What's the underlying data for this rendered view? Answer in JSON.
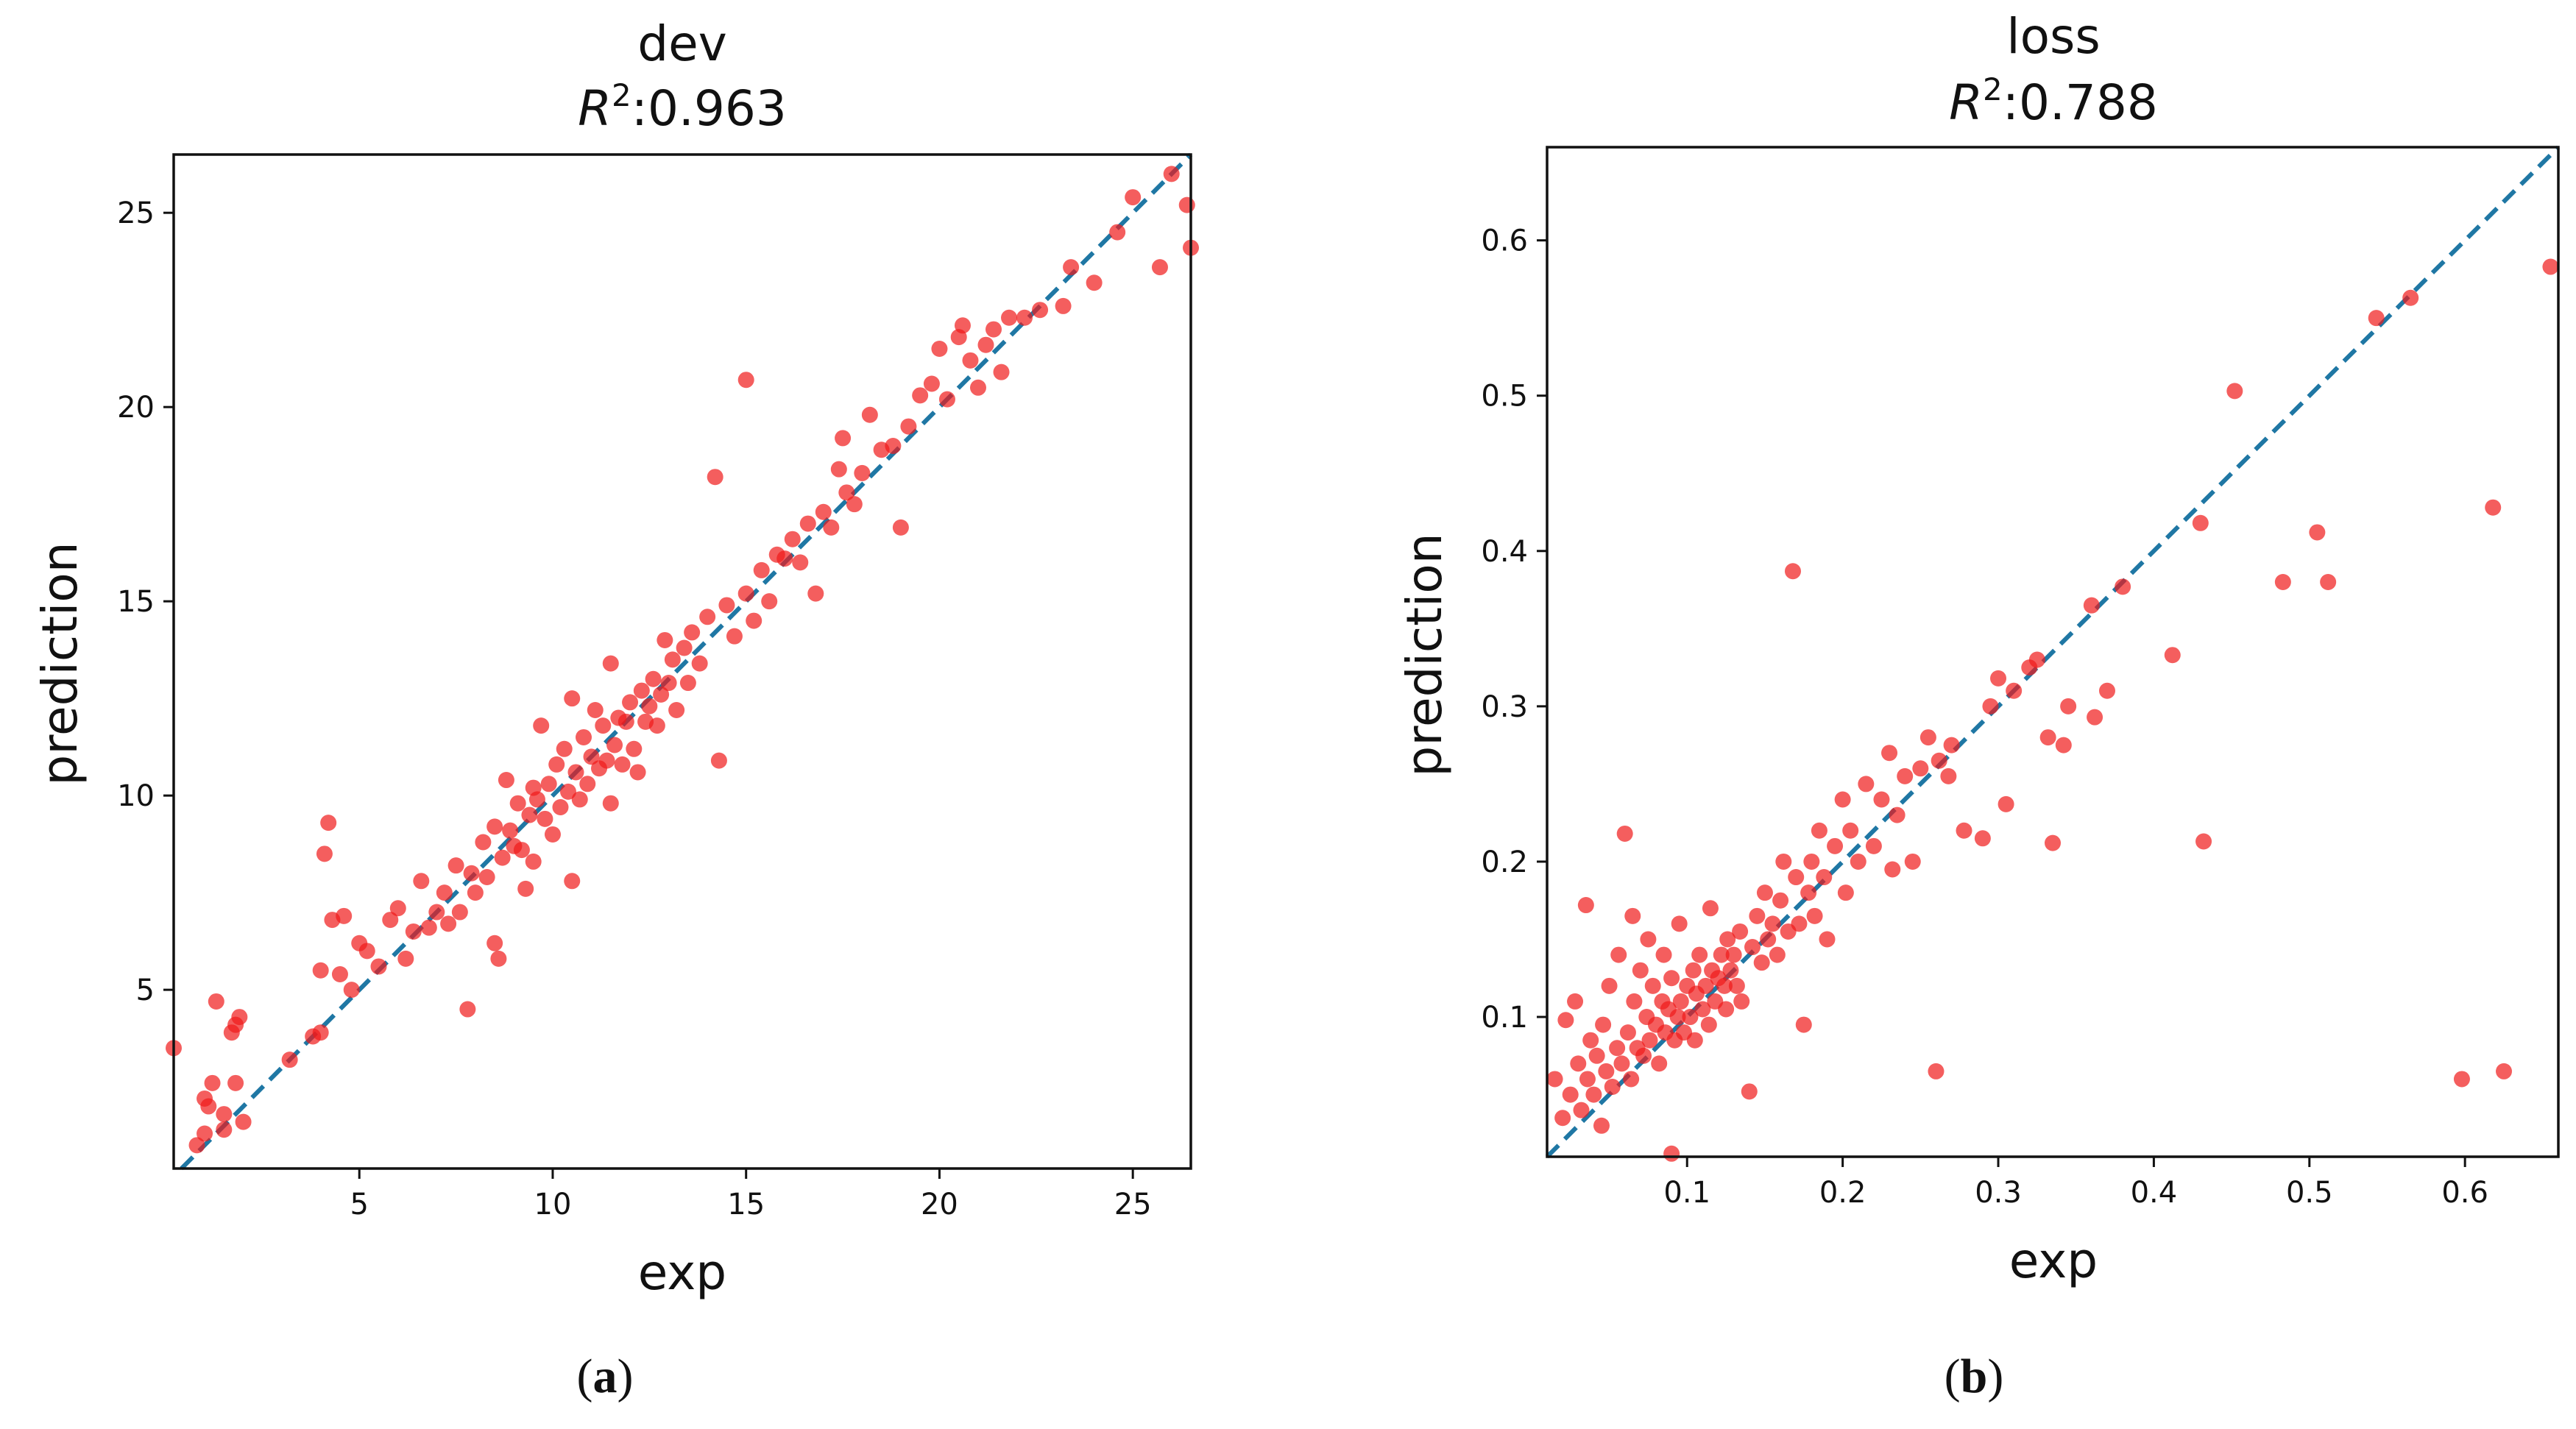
{
  "chart_data": [
    {
      "type": "scatter",
      "panel_caption": "a",
      "title": "dev",
      "r2_label": "R",
      "r2_sup": "2",
      "r2_value": ":0.963",
      "xlabel": "exp",
      "ylabel": "prediction",
      "xlim": [
        0.2,
        26.5
      ],
      "ylim": [
        0.4,
        26.5
      ],
      "xticks": [
        5,
        10,
        15,
        20,
        25
      ],
      "yticks": [
        5,
        10,
        15,
        20,
        25
      ],
      "tick_labels_x": [
        "5",
        "10",
        "15",
        "20",
        "25"
      ],
      "tick_labels_y": [
        "5",
        "10",
        "15",
        "20",
        "25"
      ],
      "reference_line": "y = x",
      "point_color": "#f01a1a",
      "line_color": "#1f77a4",
      "points": [
        [
          0.2,
          3.5
        ],
        [
          1.0,
          1.3
        ],
        [
          1.3,
          4.7
        ],
        [
          1.0,
          2.2
        ],
        [
          1.5,
          1.8
        ],
        [
          1.8,
          4.1
        ],
        [
          1.7,
          3.9
        ],
        [
          1.9,
          4.3
        ],
        [
          1.5,
          1.4
        ],
        [
          1.8,
          2.6
        ],
        [
          0.8,
          1.0
        ],
        [
          1.2,
          2.6
        ],
        [
          1.1,
          2.0
        ],
        [
          2.0,
          1.6
        ],
        [
          3.2,
          3.2
        ],
        [
          3.8,
          3.8
        ],
        [
          4.0,
          3.9
        ],
        [
          4.2,
          9.3
        ],
        [
          4.1,
          8.5
        ],
        [
          4.3,
          6.8
        ],
        [
          4.6,
          6.9
        ],
        [
          4.0,
          5.5
        ],
        [
          4.5,
          5.4
        ],
        [
          5.0,
          6.2
        ],
        [
          4.8,
          5.0
        ],
        [
          5.2,
          6.0
        ],
        [
          5.5,
          5.6
        ],
        [
          5.8,
          6.8
        ],
        [
          6.0,
          7.1
        ],
        [
          6.2,
          5.8
        ],
        [
          6.4,
          6.5
        ],
        [
          6.6,
          7.8
        ],
        [
          6.8,
          6.6
        ],
        [
          7.0,
          7.0
        ],
        [
          7.2,
          7.5
        ],
        [
          7.3,
          6.7
        ],
        [
          7.5,
          8.2
        ],
        [
          7.6,
          7.0
        ],
        [
          7.8,
          4.5
        ],
        [
          7.9,
          8.0
        ],
        [
          8.0,
          7.5
        ],
        [
          8.2,
          8.8
        ],
        [
          8.3,
          7.9
        ],
        [
          8.5,
          9.2
        ],
        [
          8.5,
          6.2
        ],
        [
          8.6,
          5.8
        ],
        [
          8.7,
          8.4
        ],
        [
          8.8,
          10.4
        ],
        [
          8.9,
          9.1
        ],
        [
          9.0,
          8.7
        ],
        [
          9.1,
          9.8
        ],
        [
          9.2,
          8.6
        ],
        [
          9.3,
          7.6
        ],
        [
          9.4,
          9.5
        ],
        [
          9.5,
          10.2
        ],
        [
          9.5,
          8.3
        ],
        [
          9.6,
          9.9
        ],
        [
          9.7,
          11.8
        ],
        [
          9.8,
          9.4
        ],
        [
          9.9,
          10.3
        ],
        [
          10.0,
          9.0
        ],
        [
          10.1,
          10.8
        ],
        [
          10.2,
          9.7
        ],
        [
          10.3,
          11.2
        ],
        [
          10.4,
          10.1
        ],
        [
          10.5,
          7.8
        ],
        [
          10.5,
          12.5
        ],
        [
          10.6,
          10.6
        ],
        [
          10.7,
          9.9
        ],
        [
          10.8,
          11.5
        ],
        [
          10.9,
          10.3
        ],
        [
          11.0,
          11.0
        ],
        [
          11.1,
          12.2
        ],
        [
          11.2,
          10.7
        ],
        [
          11.3,
          11.8
        ],
        [
          11.4,
          10.9
        ],
        [
          11.5,
          13.4
        ],
        [
          11.5,
          9.8
        ],
        [
          11.6,
          11.3
        ],
        [
          11.7,
          12.0
        ],
        [
          11.8,
          10.8
        ],
        [
          11.9,
          11.9
        ],
        [
          12.0,
          12.4
        ],
        [
          12.1,
          11.2
        ],
        [
          12.2,
          10.6
        ],
        [
          12.3,
          12.7
        ],
        [
          12.4,
          11.9
        ],
        [
          12.5,
          12.3
        ],
        [
          12.6,
          13.0
        ],
        [
          12.7,
          11.8
        ],
        [
          12.8,
          12.6
        ],
        [
          12.9,
          14.0
        ],
        [
          13.0,
          12.9
        ],
        [
          13.1,
          13.5
        ],
        [
          13.2,
          12.2
        ],
        [
          13.4,
          13.8
        ],
        [
          13.5,
          12.9
        ],
        [
          13.6,
          14.2
        ],
        [
          13.8,
          13.4
        ],
        [
          14.0,
          14.6
        ],
        [
          14.2,
          18.2
        ],
        [
          14.3,
          10.9
        ],
        [
          14.5,
          14.9
        ],
        [
          14.7,
          14.1
        ],
        [
          15.0,
          20.7
        ],
        [
          15.0,
          15.2
        ],
        [
          15.2,
          14.5
        ],
        [
          15.4,
          15.8
        ],
        [
          15.6,
          15.0
        ],
        [
          15.8,
          16.2
        ],
        [
          16.0,
          16.1
        ],
        [
          16.2,
          16.6
        ],
        [
          16.4,
          16.0
        ],
        [
          16.6,
          17.0
        ],
        [
          16.8,
          15.2
        ],
        [
          17.0,
          17.3
        ],
        [
          17.2,
          16.9
        ],
        [
          17.4,
          18.4
        ],
        [
          17.5,
          19.2
        ],
        [
          17.6,
          17.8
        ],
        [
          17.8,
          17.5
        ],
        [
          18.0,
          18.3
        ],
        [
          18.2,
          19.8
        ],
        [
          18.5,
          18.9
        ],
        [
          18.8,
          19.0
        ],
        [
          19.0,
          16.9
        ],
        [
          19.2,
          19.5
        ],
        [
          19.5,
          20.3
        ],
        [
          19.8,
          20.6
        ],
        [
          20.0,
          21.5
        ],
        [
          20.2,
          20.2
        ],
        [
          20.5,
          21.8
        ],
        [
          20.6,
          22.1
        ],
        [
          20.8,
          21.2
        ],
        [
          21.0,
          20.5
        ],
        [
          21.2,
          21.6
        ],
        [
          21.4,
          22.0
        ],
        [
          21.6,
          20.9
        ],
        [
          21.8,
          22.3
        ],
        [
          22.2,
          22.3
        ],
        [
          22.6,
          22.5
        ],
        [
          23.2,
          22.6
        ],
        [
          23.4,
          23.6
        ],
        [
          24.0,
          23.2
        ],
        [
          24.6,
          24.5
        ],
        [
          25.0,
          25.4
        ],
        [
          25.7,
          23.6
        ],
        [
          26.0,
          26.0
        ],
        [
          26.4,
          25.2
        ],
        [
          26.5,
          24.1
        ]
      ]
    },
    {
      "type": "scatter",
      "panel_caption": "b",
      "title": "loss",
      "r2_label": "R",
      "r2_sup": "2",
      "r2_value": ":0.788",
      "xlabel": "exp",
      "ylabel": "prediction",
      "xlim": [
        0.01,
        0.66
      ],
      "ylim": [
        0.01,
        0.66
      ],
      "xticks": [
        0.1,
        0.2,
        0.3,
        0.4,
        0.5,
        0.6
      ],
      "yticks": [
        0.1,
        0.2,
        0.3,
        0.4,
        0.5,
        0.6
      ],
      "tick_labels_x": [
        "0.1",
        "0.2",
        "0.3",
        "0.4",
        "0.5",
        "0.6"
      ],
      "tick_labels_y": [
        "0.1",
        "0.2",
        "0.3",
        "0.4",
        "0.5",
        "0.6"
      ],
      "reference_line": "y = x",
      "point_color": "#f01a1a",
      "line_color": "#1f77a4",
      "points": [
        [
          0.015,
          0.06
        ],
        [
          0.02,
          0.035
        ],
        [
          0.022,
          0.098
        ],
        [
          0.025,
          0.05
        ],
        [
          0.028,
          0.11
        ],
        [
          0.03,
          0.07
        ],
        [
          0.032,
          0.04
        ],
        [
          0.035,
          0.172
        ],
        [
          0.036,
          0.06
        ],
        [
          0.038,
          0.085
        ],
        [
          0.04,
          0.05
        ],
        [
          0.042,
          0.075
        ],
        [
          0.045,
          0.03
        ],
        [
          0.046,
          0.095
        ],
        [
          0.048,
          0.065
        ],
        [
          0.05,
          0.12
        ],
        [
          0.052,
          0.055
        ],
        [
          0.055,
          0.08
        ],
        [
          0.056,
          0.14
        ],
        [
          0.058,
          0.07
        ],
        [
          0.06,
          0.218
        ],
        [
          0.062,
          0.09
        ],
        [
          0.064,
          0.06
        ],
        [
          0.065,
          0.165
        ],
        [
          0.066,
          0.11
        ],
        [
          0.068,
          0.08
        ],
        [
          0.07,
          0.13
        ],
        [
          0.072,
          0.075
        ],
        [
          0.074,
          0.1
        ],
        [
          0.075,
          0.15
        ],
        [
          0.076,
          0.085
        ],
        [
          0.078,
          0.12
        ],
        [
          0.08,
          0.095
        ],
        [
          0.082,
          0.07
        ],
        [
          0.084,
          0.11
        ],
        [
          0.085,
          0.14
        ],
        [
          0.086,
          0.09
        ],
        [
          0.088,
          0.105
        ],
        [
          0.09,
          0.012
        ],
        [
          0.09,
          0.125
        ],
        [
          0.092,
          0.085
        ],
        [
          0.094,
          0.1
        ],
        [
          0.095,
          0.16
        ],
        [
          0.096,
          0.11
        ],
        [
          0.098,
          0.09
        ],
        [
          0.1,
          0.12
        ],
        [
          0.102,
          0.1
        ],
        [
          0.104,
          0.13
        ],
        [
          0.105,
          0.085
        ],
        [
          0.106,
          0.115
        ],
        [
          0.108,
          0.14
        ],
        [
          0.11,
          0.105
        ],
        [
          0.112,
          0.12
        ],
        [
          0.114,
          0.095
        ],
        [
          0.115,
          0.17
        ],
        [
          0.116,
          0.13
        ],
        [
          0.118,
          0.11
        ],
        [
          0.12,
          0.125
        ],
        [
          0.122,
          0.14
        ],
        [
          0.124,
          0.12
        ],
        [
          0.125,
          0.105
        ],
        [
          0.126,
          0.15
        ],
        [
          0.128,
          0.13
        ],
        [
          0.13,
          0.14
        ],
        [
          0.132,
          0.12
        ],
        [
          0.134,
          0.155
        ],
        [
          0.135,
          0.11
        ],
        [
          0.14,
          0.052
        ],
        [
          0.142,
          0.145
        ],
        [
          0.145,
          0.165
        ],
        [
          0.148,
          0.135
        ],
        [
          0.15,
          0.18
        ],
        [
          0.152,
          0.15
        ],
        [
          0.155,
          0.16
        ],
        [
          0.158,
          0.14
        ],
        [
          0.16,
          0.175
        ],
        [
          0.162,
          0.2
        ],
        [
          0.165,
          0.155
        ],
        [
          0.168,
          0.387
        ],
        [
          0.17,
          0.19
        ],
        [
          0.172,
          0.16
        ],
        [
          0.175,
          0.095
        ],
        [
          0.178,
          0.18
        ],
        [
          0.18,
          0.2
        ],
        [
          0.182,
          0.165
        ],
        [
          0.185,
          0.22
        ],
        [
          0.188,
          0.19
        ],
        [
          0.19,
          0.15
        ],
        [
          0.195,
          0.21
        ],
        [
          0.2,
          0.24
        ],
        [
          0.202,
          0.18
        ],
        [
          0.205,
          0.22
        ],
        [
          0.21,
          0.2
        ],
        [
          0.215,
          0.25
        ],
        [
          0.22,
          0.21
        ],
        [
          0.225,
          0.24
        ],
        [
          0.23,
          0.27
        ],
        [
          0.232,
          0.195
        ],
        [
          0.235,
          0.23
        ],
        [
          0.24,
          0.255
        ],
        [
          0.245,
          0.2
        ],
        [
          0.25,
          0.26
        ],
        [
          0.255,
          0.28
        ],
        [
          0.26,
          0.065
        ],
        [
          0.262,
          0.265
        ],
        [
          0.268,
          0.255
        ],
        [
          0.27,
          0.275
        ],
        [
          0.278,
          0.22
        ],
        [
          0.29,
          0.215
        ],
        [
          0.295,
          0.3
        ],
        [
          0.3,
          0.318
        ],
        [
          0.305,
          0.237
        ],
        [
          0.31,
          0.31
        ],
        [
          0.32,
          0.325
        ],
        [
          0.325,
          0.33
        ],
        [
          0.332,
          0.28
        ],
        [
          0.335,
          0.212
        ],
        [
          0.342,
          0.275
        ],
        [
          0.345,
          0.3
        ],
        [
          0.36,
          0.365
        ],
        [
          0.362,
          0.293
        ],
        [
          0.37,
          0.31
        ],
        [
          0.38,
          0.377
        ],
        [
          0.412,
          0.333
        ],
        [
          0.43,
          0.418
        ],
        [
          0.432,
          0.213
        ],
        [
          0.452,
          0.503
        ],
        [
          0.483,
          0.38
        ],
        [
          0.505,
          0.412
        ],
        [
          0.512,
          0.38
        ],
        [
          0.543,
          0.55
        ],
        [
          0.565,
          0.563
        ],
        [
          0.598,
          0.06
        ],
        [
          0.618,
          0.428
        ],
        [
          0.625,
          0.065
        ],
        [
          0.655,
          0.583
        ]
      ]
    }
  ]
}
